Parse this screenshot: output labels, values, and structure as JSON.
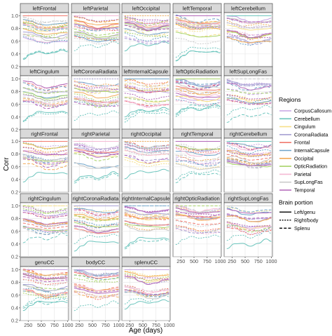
{
  "chart_data": {
    "type": "line",
    "xlabel": "Age (days)",
    "ylabel": "Corr",
    "xlim": [
      100,
      1020
    ],
    "ylim": [
      0.2,
      1.05
    ],
    "x_ticks": [
      250,
      500,
      750,
      1000
    ],
    "y_ticks": [
      0.2,
      0.4,
      0.6,
      0.8,
      1.0
    ],
    "y_tick_labels": [
      "0.2",
      "0.4",
      "0.6",
      "0.8",
      "1.0"
    ],
    "x_tick_labels": [
      "250",
      "500",
      "750",
      "1000"
    ],
    "grid": true,
    "legend": {
      "placement": "right",
      "regions_title": "Regions",
      "regions": [
        {
          "name": "CorpusCallosum",
          "color": "#c5a3e3"
        },
        {
          "name": "Cerebellum",
          "color": "#6cc5bd"
        },
        {
          "name": "Cingulum",
          "color": "#f6e08a"
        },
        {
          "name": "CoronaRadiata",
          "color": "#a69fd3"
        },
        {
          "name": "Frontal",
          "color": "#f1796d"
        },
        {
          "name": "InternalCapsule",
          "color": "#6fa4c9"
        },
        {
          "name": "Occipital",
          "color": "#f2ab58"
        },
        {
          "name": "OpticRadiation",
          "color": "#a8d36a"
        },
        {
          "name": "Parietal",
          "color": "#f4b9d4"
        },
        {
          "name": "SupLongFas",
          "color": "#cbcbcb"
        },
        {
          "name": "Temporal",
          "color": "#b266b8"
        }
      ],
      "portion_title": "Brain portion",
      "portions": [
        {
          "name": "Left/genu",
          "dash": "solid"
        },
        {
          "name": "Right/body",
          "dash": "dotted"
        },
        {
          "name": "Splenu",
          "dash": "dashed"
        }
      ]
    },
    "panels": [
      {
        "name": "leftFrontal",
        "self": "Frontal",
        "self_value": 1.0
      },
      {
        "name": "leftParietal",
        "self": "Parietal",
        "self_value": 1.0
      },
      {
        "name": "leftOccipital",
        "self": "Occipital",
        "self_value": 1.0
      },
      {
        "name": "leftTemporal",
        "self": "Temporal",
        "self_value": 1.0
      },
      {
        "name": "leftCerebellum",
        "self": "Cerebellum",
        "self_value": 1.0
      },
      {
        "name": "leftCingulum",
        "self": "Cingulum",
        "self_value": 1.0
      },
      {
        "name": "leftCoronaRadiata",
        "self": "CoronaRadiata",
        "self_value": 1.0
      },
      {
        "name": "leftInternalCapsule",
        "self": "InternalCapsule",
        "self_value": 1.0
      },
      {
        "name": "leftOpticRadiation",
        "self": "OpticRadiation",
        "self_value": 1.0
      },
      {
        "name": "leftSupLongFas",
        "self": "SupLongFas",
        "self_value": 1.0
      },
      {
        "name": "rightFrontal",
        "self": "Frontal",
        "self_value": 1.0
      },
      {
        "name": "rightParietal",
        "self": "Parietal",
        "self_value": 1.0
      },
      {
        "name": "rightOccipital",
        "self": "Occipital",
        "self_value": 1.0
      },
      {
        "name": "rightTemporal",
        "self": "Temporal",
        "self_value": 1.0
      },
      {
        "name": "rightCerebellum",
        "self": "Cerebellum",
        "self_value": 1.0
      },
      {
        "name": "rightCingulum",
        "self": "Cingulum",
        "self_value": 1.0
      },
      {
        "name": "rightCoronaRadiata",
        "self": "CoronaRadiata",
        "self_value": 1.0
      },
      {
        "name": "rightInternalCapsule",
        "self": "InternalCapsule",
        "self_value": 1.0
      },
      {
        "name": "rightOpticRadiation",
        "self": "OpticRadiation",
        "self_value": 1.0
      },
      {
        "name": "rightSupLongFas",
        "self": "SupLongFas",
        "self_value": 1.0
      },
      {
        "name": "genuCC",
        "self": "CorpusCallosum",
        "self_value": 1.0
      },
      {
        "name": "bodyCC",
        "self": "CorpusCallosum",
        "self_value": 1.0
      },
      {
        "name": "splenuCC",
        "self": "CorpusCallosum",
        "self_value": 1.0
      }
    ],
    "typical_curve_levels": {
      "x": [
        150,
        300,
        450,
        600,
        750,
        900,
        1000
      ],
      "cerebellum_low": [
        0.38,
        0.46,
        0.5,
        0.47,
        0.49,
        0.53,
        0.5
      ],
      "high_band": [
        0.92,
        0.9,
        0.86,
        0.84,
        0.85,
        0.86,
        0.87
      ],
      "mid_band": [
        0.72,
        0.7,
        0.66,
        0.63,
        0.64,
        0.66,
        0.67
      ]
    }
  }
}
